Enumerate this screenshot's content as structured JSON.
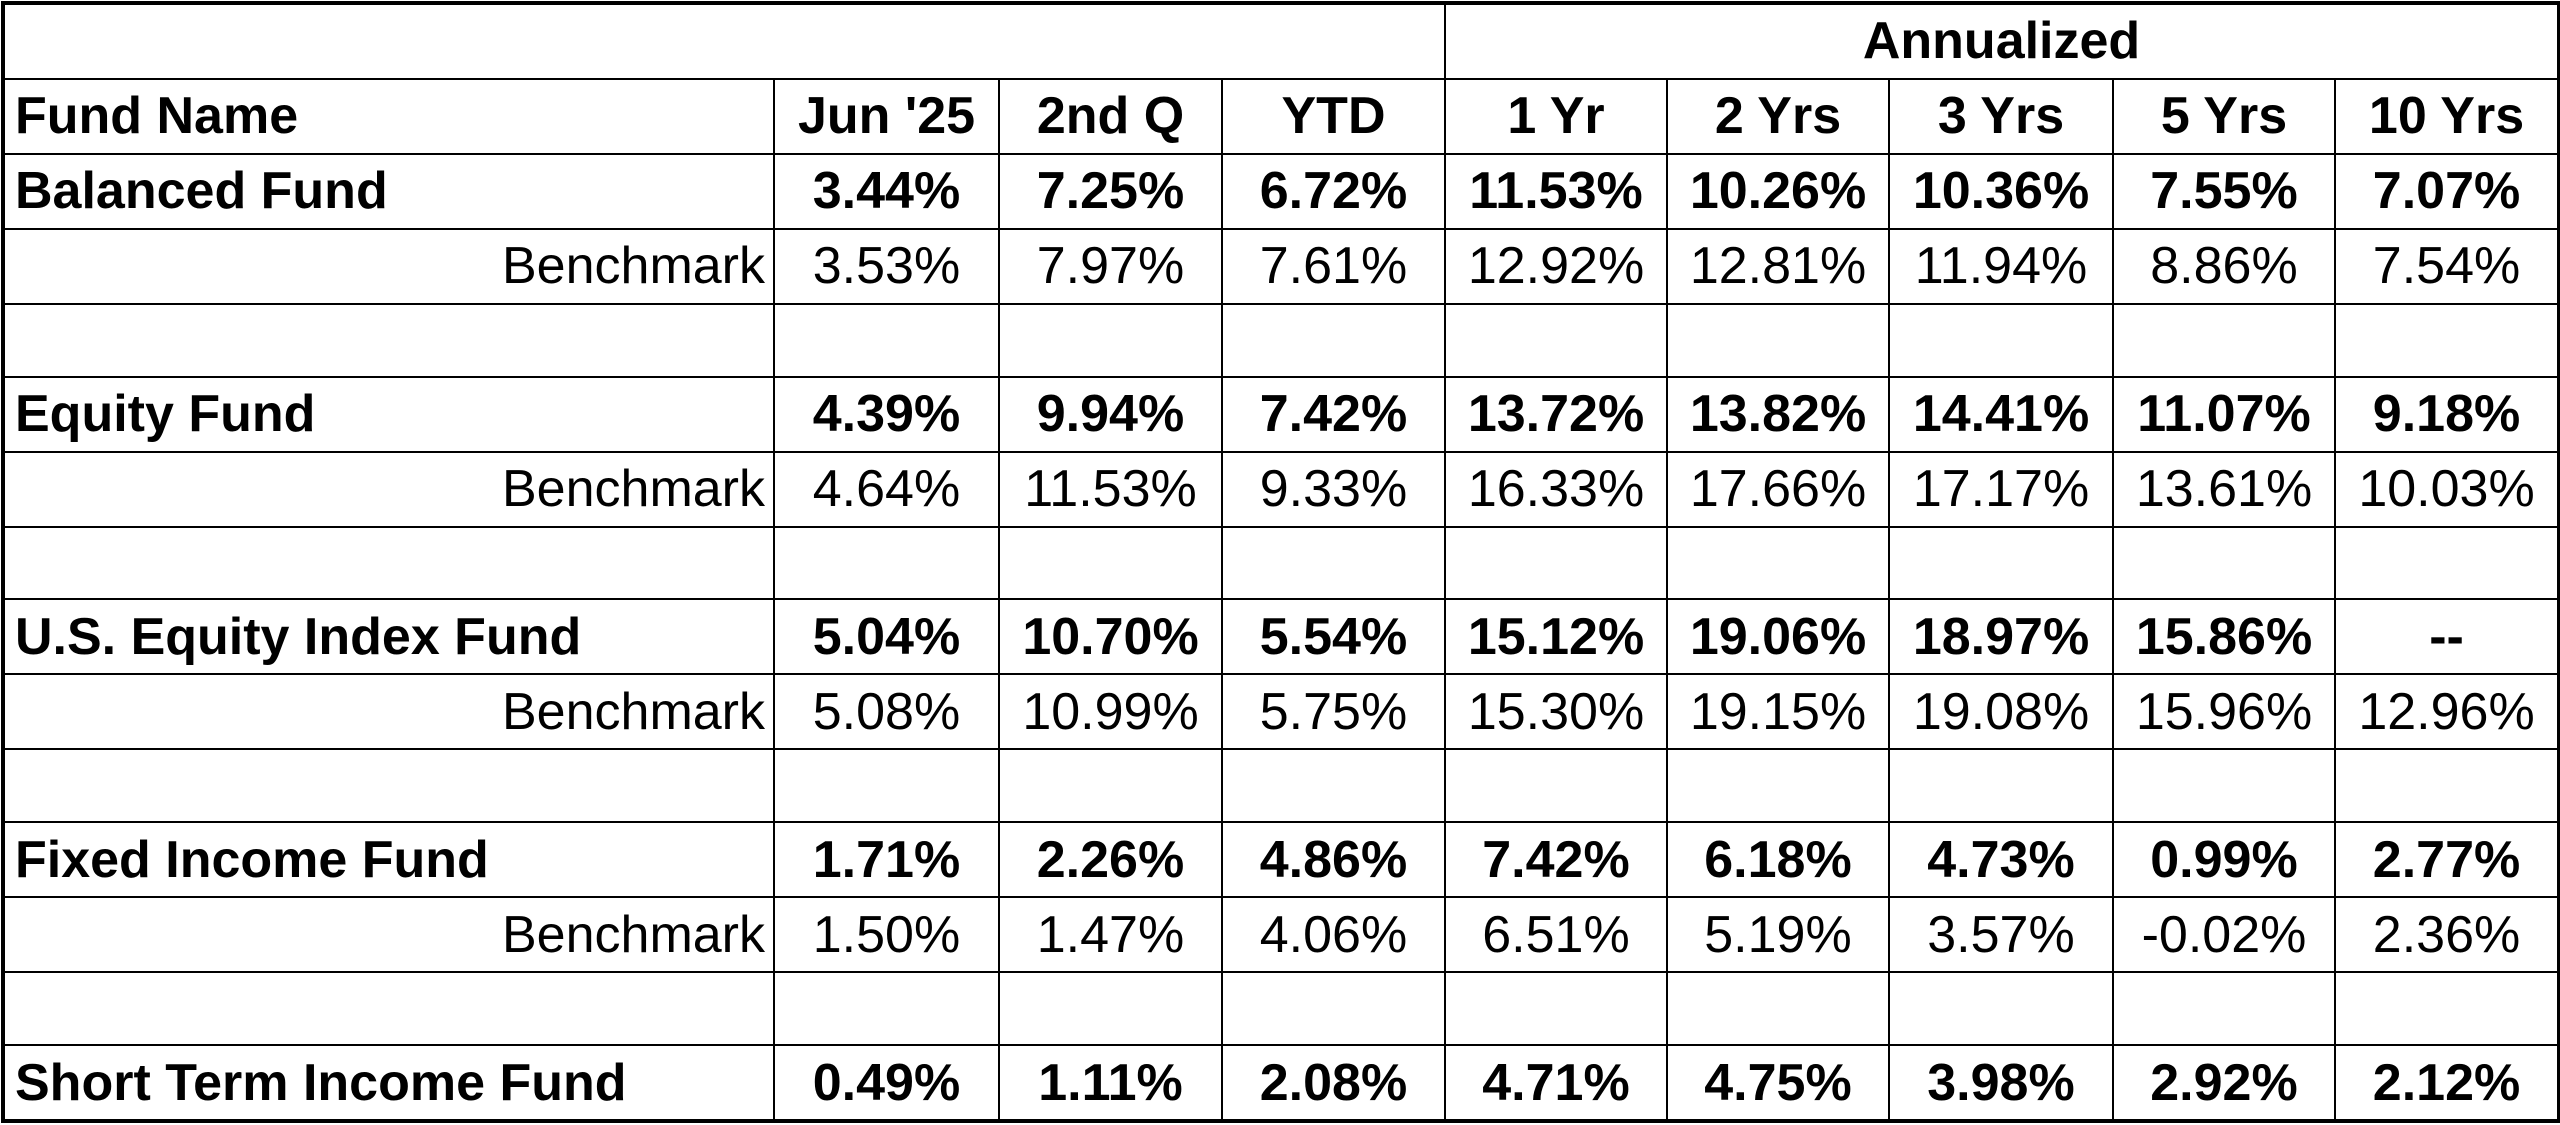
{
  "header": {
    "group_label": "Annualized",
    "columns": [
      "Fund Name",
      "Jun '25",
      "2nd Q",
      "YTD",
      "1 Yr",
      "2 Yrs",
      "3 Yrs",
      "5 Yrs",
      "10 Yrs"
    ]
  },
  "funds": [
    {
      "name": "Balanced Fund",
      "values": [
        "3.44%",
        "7.25%",
        "6.72%",
        "11.53%",
        "10.26%",
        "10.36%",
        "7.55%",
        "7.07%"
      ],
      "benchmark_label": "Benchmark",
      "benchmark": [
        "3.53%",
        "7.97%",
        "7.61%",
        "12.92%",
        "12.81%",
        "11.94%",
        "8.86%",
        "7.54%"
      ]
    },
    {
      "name": "Equity Fund",
      "values": [
        "4.39%",
        "9.94%",
        "7.42%",
        "13.72%",
        "13.82%",
        "14.41%",
        "11.07%",
        "9.18%"
      ],
      "benchmark_label": "Benchmark",
      "benchmark": [
        "4.64%",
        "11.53%",
        "9.33%",
        "16.33%",
        "17.66%",
        "17.17%",
        "13.61%",
        "10.03%"
      ]
    },
    {
      "name": "U.S. Equity Index Fund",
      "values": [
        "5.04%",
        "10.70%",
        "5.54%",
        "15.12%",
        "19.06%",
        "18.97%",
        "15.86%",
        "--"
      ],
      "benchmark_label": "Benchmark",
      "benchmark": [
        "5.08%",
        "10.99%",
        "5.75%",
        "15.30%",
        "19.15%",
        "19.08%",
        "15.96%",
        "12.96%"
      ]
    },
    {
      "name": "Fixed Income Fund",
      "values": [
        "1.71%",
        "2.26%",
        "4.86%",
        "7.42%",
        "6.18%",
        "4.73%",
        "0.99%",
        "2.77%"
      ],
      "benchmark_label": "Benchmark",
      "benchmark": [
        "1.50%",
        "1.47%",
        "4.06%",
        "6.51%",
        "5.19%",
        "3.57%",
        "-0.02%",
        "2.36%"
      ]
    },
    {
      "name": "Short Term Income Fund",
      "values": [
        "0.49%",
        "1.11%",
        "2.08%",
        "4.71%",
        "4.75%",
        "3.98%",
        "2.92%",
        "2.12%"
      ]
    }
  ]
}
